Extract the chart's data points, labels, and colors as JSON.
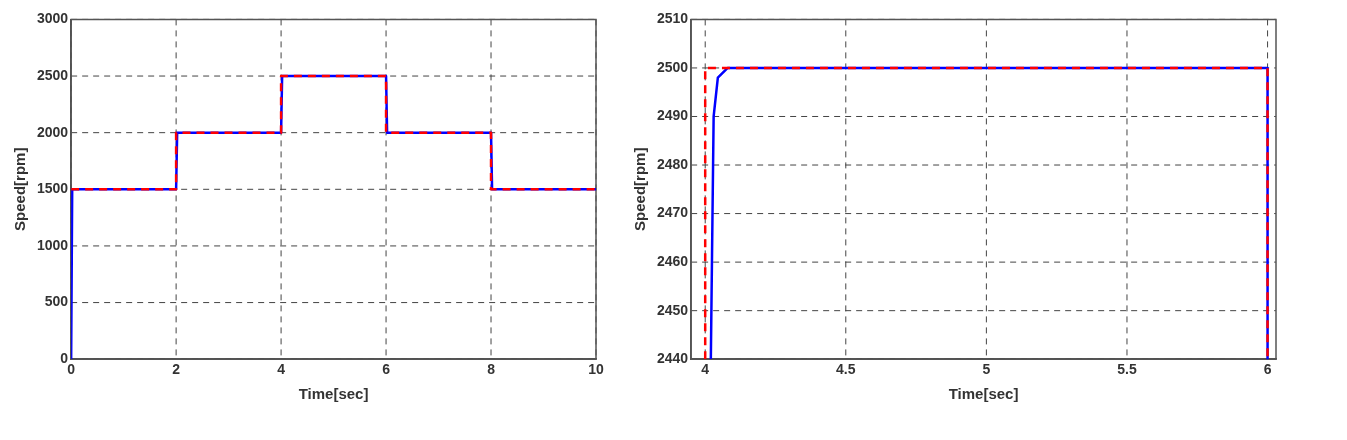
{
  "chart_data": [
    {
      "type": "line",
      "xlabel": "Time[sec]",
      "ylabel": "Speed[rpm]",
      "xlim": [
        0,
        10
      ],
      "ylim": [
        0,
        3000
      ],
      "xticks": [
        0,
        2,
        4,
        6,
        8,
        10
      ],
      "yticks": [
        0,
        500,
        1000,
        1500,
        2000,
        2500,
        3000
      ],
      "grid": true,
      "series": [
        {
          "color": "#0000ff",
          "line_style": "solid",
          "x": [
            0,
            0.02,
            2,
            2.02,
            4,
            4.02,
            6,
            6.02,
            8,
            8.02,
            10
          ],
          "values": [
            0,
            1500,
            1500,
            2000,
            2000,
            2500,
            2500,
            2000,
            2000,
            1500,
            1500
          ]
        },
        {
          "color": "#ff0000",
          "line_style": "dashed",
          "x": [
            0,
            2,
            2,
            4,
            4,
            6,
            6,
            8,
            8,
            10
          ],
          "values": [
            1500,
            1500,
            2000,
            2000,
            2500,
            2500,
            2000,
            2000,
            1500,
            1500
          ]
        }
      ]
    },
    {
      "type": "line",
      "xlabel": "Time[sec]",
      "ylabel": "Speed[rpm]",
      "xlim": [
        3.95,
        6.03
      ],
      "ylim": [
        2440,
        2510
      ],
      "xticks": [
        4,
        4.5,
        5,
        5.5,
        6
      ],
      "yticks": [
        2440,
        2450,
        2460,
        2470,
        2480,
        2490,
        2500,
        2510
      ],
      "grid": true,
      "series": [
        {
          "color": "#0000ff",
          "line_style": "solid",
          "x": [
            4.02,
            4.03,
            4.045,
            4.08,
            6,
            6
          ],
          "values": [
            2440,
            2490,
            2498,
            2500,
            2500,
            2440
          ]
        },
        {
          "color": "#ff0000",
          "line_style": "dashed",
          "x": [
            4,
            4,
            6,
            6
          ],
          "values": [
            2440,
            2500,
            2500,
            2440
          ]
        }
      ]
    }
  ]
}
